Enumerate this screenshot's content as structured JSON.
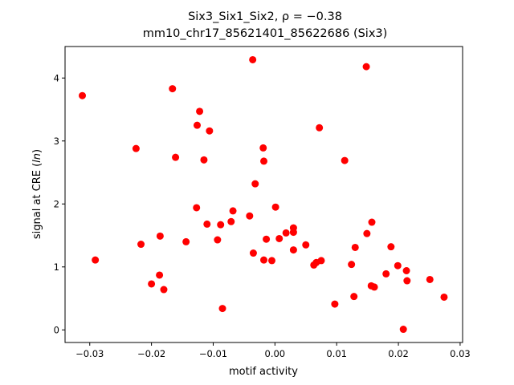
{
  "chart_data": {
    "type": "scatter",
    "title_line1": "Six3_Six1_Six2, ρ = −0.38",
    "title_line2": "mm10_chr17_85621401_85622686 (Six3)",
    "xlabel": "motif activity",
    "ylabel_prefix": "signal at CRE (",
    "ylabel_italic": "ln",
    "ylabel_suffix": ")",
    "xlim": [
      -0.034,
      0.0304
    ],
    "ylim": [
      -0.2,
      4.5
    ],
    "xticks": [
      -0.03,
      -0.02,
      -0.01,
      0.0,
      0.01,
      0.02,
      0.03
    ],
    "xtick_labels": [
      "−0.03",
      "−0.02",
      "−0.01",
      "0.00",
      "0.01",
      "0.02",
      "0.03"
    ],
    "yticks": [
      0,
      1,
      2,
      3,
      4
    ],
    "ytick_labels": [
      "0",
      "1",
      "2",
      "3",
      "4"
    ],
    "grid": false,
    "marker_color": "#ff0000",
    "points": [
      [
        -0.0312,
        3.72
      ],
      [
        -0.0291,
        1.11
      ],
      [
        -0.0225,
        2.88
      ],
      [
        -0.0217,
        1.36
      ],
      [
        -0.02,
        0.73
      ],
      [
        -0.0187,
        0.87
      ],
      [
        -0.0186,
        1.49
      ],
      [
        -0.018,
        0.64
      ],
      [
        -0.0166,
        3.83
      ],
      [
        -0.0161,
        2.74
      ],
      [
        -0.0144,
        1.4
      ],
      [
        -0.0127,
        1.94
      ],
      [
        -0.0126,
        3.25
      ],
      [
        -0.0122,
        3.47
      ],
      [
        -0.0115,
        2.7
      ],
      [
        -0.011,
        1.68
      ],
      [
        -0.0106,
        3.16
      ],
      [
        -0.0093,
        1.43
      ],
      [
        -0.0088,
        1.67
      ],
      [
        -0.0085,
        0.34
      ],
      [
        -0.0071,
        1.72
      ],
      [
        -0.0068,
        1.89
      ],
      [
        -0.0041,
        1.81
      ],
      [
        -0.0036,
        4.29
      ],
      [
        -0.0035,
        1.22
      ],
      [
        -0.0032,
        2.32
      ],
      [
        -0.0019,
        2.89
      ],
      [
        -0.0018,
        2.68
      ],
      [
        -0.0018,
        1.11
      ],
      [
        -0.0014,
        1.44
      ],
      [
        -0.0005,
        1.1
      ],
      [
        0.0001,
        1.95
      ],
      [
        0.0007,
        1.45
      ],
      [
        0.0018,
        1.54
      ],
      [
        0.003,
        1.55
      ],
      [
        0.003,
        1.62
      ],
      [
        0.003,
        1.27
      ],
      [
        0.005,
        1.35
      ],
      [
        0.0063,
        1.03
      ],
      [
        0.0067,
        1.07
      ],
      [
        0.0072,
        3.21
      ],
      [
        0.0075,
        1.1
      ],
      [
        0.0097,
        0.41
      ],
      [
        0.0113,
        2.69
      ],
      [
        0.0124,
        1.04
      ],
      [
        0.0128,
        0.53
      ],
      [
        0.013,
        1.31
      ],
      [
        0.0148,
        4.18
      ],
      [
        0.0149,
        1.53
      ],
      [
        0.0156,
        0.7
      ],
      [
        0.0157,
        1.71
      ],
      [
        0.0161,
        0.68
      ],
      [
        0.018,
        0.89
      ],
      [
        0.0188,
        1.32
      ],
      [
        0.0199,
        1.02
      ],
      [
        0.0208,
        0.01
      ],
      [
        0.0213,
        0.94
      ],
      [
        0.0214,
        0.78
      ],
      [
        0.0251,
        0.8
      ],
      [
        0.0274,
        0.52
      ]
    ]
  }
}
